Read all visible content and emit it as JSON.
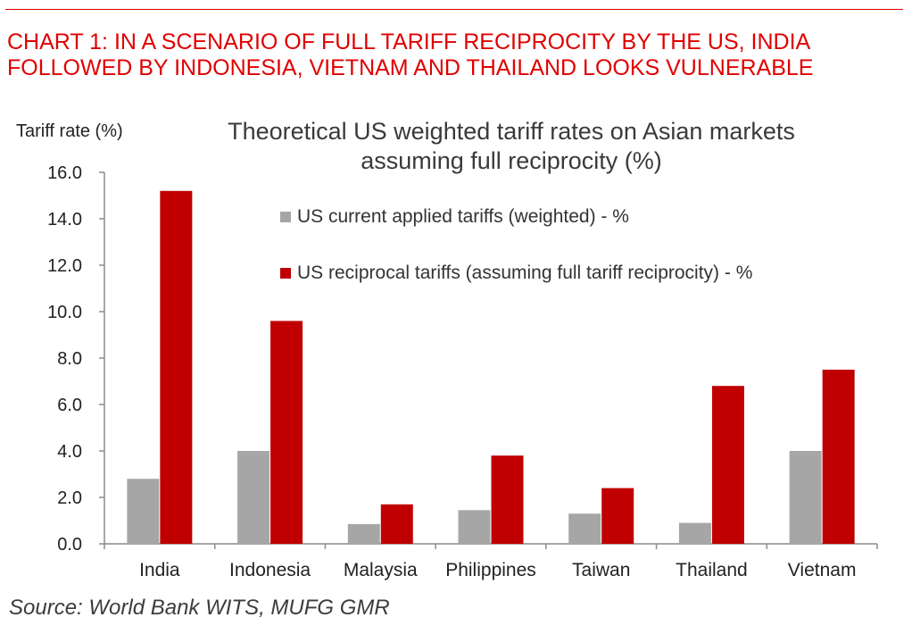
{
  "headline": {
    "line1": "CHART 1: IN A SCENARIO OF FULL TARIFF RECIPROCITY BY THE US, INDIA",
    "line2": "FOLLOWED BY INDONESIA, VIETNAM AND THAILAND LOOKS VULNERABLE"
  },
  "source": "Source: World Bank WITS, MUFG GMR",
  "colors": {
    "accent": "#e00000",
    "series_current": "#a6a6a6",
    "series_reciprocal": "#c00000"
  },
  "chart_data": {
    "type": "bar",
    "title": "Theoretical US weighted tariff rates on Asian markets assuming full reciprocity (%)",
    "title_lines": [
      "Theoretical US weighted tariff rates on Asian markets",
      "assuming full reciprocity (%)"
    ],
    "ylabel": "Tariff rate (%)",
    "xlabel": "",
    "ylim": [
      0,
      16
    ],
    "yticks": [
      "0.0",
      "2.0",
      "4.0",
      "6.0",
      "8.0",
      "10.0",
      "12.0",
      "14.0",
      "16.0"
    ],
    "grid": false,
    "legend_position": "top-right",
    "categories": [
      "India",
      "Indonesia",
      "Malaysia",
      "Philippines",
      "Taiwan",
      "Thailand",
      "Vietnam"
    ],
    "series": [
      {
        "name": "US current applied tariffs (weighted) - %",
        "color": "#a6a6a6",
        "values": [
          2.8,
          4.0,
          0.85,
          1.45,
          1.3,
          0.9,
          4.0
        ]
      },
      {
        "name": "US reciprocal tariffs (assuming full tariff reciprocity) - %",
        "color": "#c00000",
        "values": [
          15.2,
          9.6,
          1.7,
          3.8,
          2.4,
          6.8,
          7.5
        ]
      }
    ]
  }
}
